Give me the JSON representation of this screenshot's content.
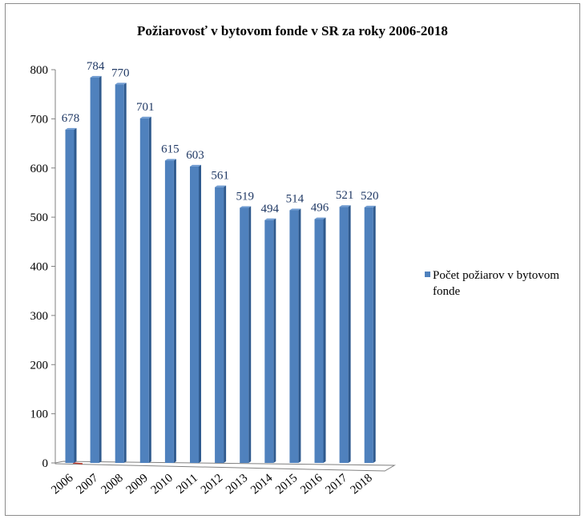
{
  "chart_data": {
    "type": "bar",
    "title": "Požiarovosť v bytovom fonde v SR za roky 2006-2018",
    "categories": [
      "2006",
      "2007",
      "2008",
      "2009",
      "2010",
      "2011",
      "2012",
      "2013",
      "2014",
      "2015",
      "2016",
      "2017",
      "2018"
    ],
    "series": [
      {
        "name": "Počet požiarov v bytovom fonde",
        "values": [
          678,
          784,
          770,
          701,
          615,
          603,
          561,
          519,
          494,
          514,
          496,
          521,
          520
        ],
        "color": "#4F81BD"
      }
    ],
    "ylim": [
      0,
      800
    ],
    "yticks": [
      0,
      100,
      200,
      300,
      400,
      500,
      600,
      700,
      800
    ],
    "data_labels": true,
    "legend_position": "right",
    "grid": false,
    "style": "3d-column"
  }
}
